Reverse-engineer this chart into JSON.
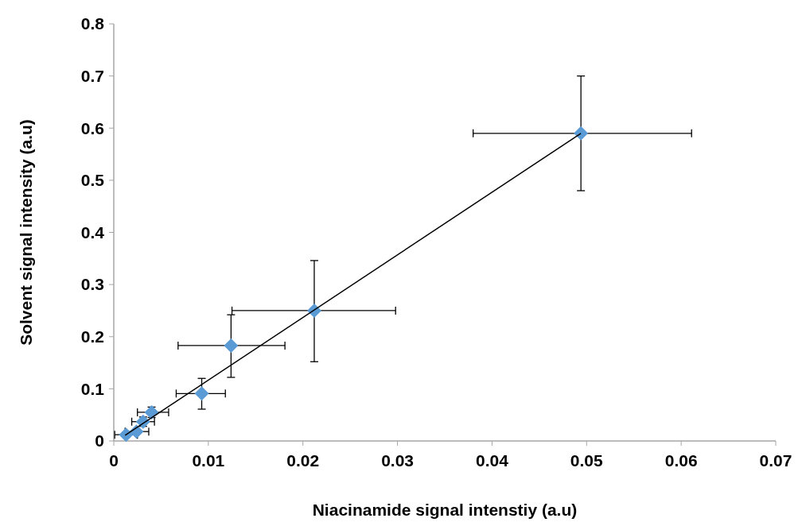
{
  "chart_data": {
    "type": "scatter",
    "xlabel": "Niacinamide signal intenstiy (a.u)",
    "ylabel": "Solvent signal intensity  (a.u)",
    "xlim": [
      0,
      0.07
    ],
    "ylim": [
      0,
      0.8
    ],
    "xticks": [
      0,
      0.01,
      0.02,
      0.03,
      0.04,
      0.05,
      0.06,
      0.07
    ],
    "yticks": [
      0,
      0.1,
      0.2,
      0.3,
      0.4,
      0.5,
      0.6,
      0.7,
      0.8
    ],
    "series": [
      {
        "color": "#5b9bd5",
        "marker": "diamond",
        "x": [
          0.0494,
          0.0212,
          0.0124,
          0.0093,
          0.004,
          0.0031,
          0.0024,
          0.0013
        ],
        "values": [
          0.59,
          0.25,
          0.183,
          0.091,
          0.055,
          0.037,
          0.018,
          0.012
        ],
        "errors": [
          [
            0.48,
            0.7
          ],
          [
            0.152,
            0.346
          ],
          [
            0.122,
            0.242
          ],
          [
            0.061,
            0.12
          ],
          [
            0.045,
            0.065
          ],
          [
            0.028,
            0.046
          ],
          null,
          null
        ],
        "xerrors": [
          [
            0.038,
            0.0611
          ],
          [
            0.0125,
            0.0298
          ],
          [
            0.0068,
            0.0181
          ],
          [
            0.0066,
            0.0118
          ],
          [
            0.0025,
            0.0058
          ],
          [
            0.0019,
            0.0043
          ],
          [
            0.0012,
            0.0037
          ],
          [
            0.0001,
            0.0025
          ]
        ]
      },
      {
        "type": "line",
        "color": "#000000",
        "x": [
          0.0012,
          0.0494
        ],
        "values": [
          0.011,
          0.59
        ]
      }
    ]
  }
}
